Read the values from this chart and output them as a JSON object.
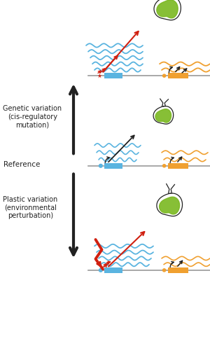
{
  "fig_width": 3.0,
  "fig_height": 4.97,
  "dpi": 100,
  "bg_color": "#ffffff",
  "blue_color": "#5ab4e0",
  "orange_color": "#f0a030",
  "green_color": "#7ab820",
  "red_color": "#d02010",
  "black_color": "#222222",
  "gray_color": "#888888",
  "labels": {
    "genetic": "Genetic variation\n(cis-regulatory\nmutation)",
    "reference": "Reference",
    "plastic": "Plastic variation\n(environmental\nperturbation)"
  },
  "xlim": [
    0,
    10
  ],
  "ylim": [
    0,
    17
  ],
  "y_top_track": 13.3,
  "y_mid_track": 8.9,
  "y_bot_track": 3.8
}
